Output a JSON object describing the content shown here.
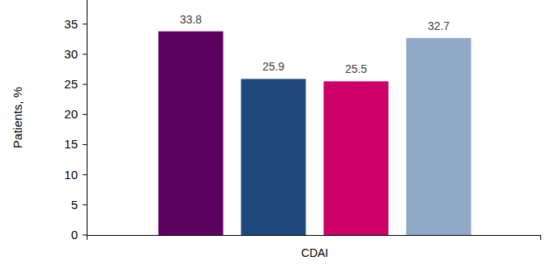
{
  "chart_data": {
    "type": "bar",
    "y_label": "Patients, %",
    "categories": [
      "CDAI"
    ],
    "series": [
      {
        "color": "#5c0060",
        "values": [
          33.8
        ]
      },
      {
        "color": "#1f497d",
        "values": [
          25.9
        ]
      },
      {
        "color": "#cc0066",
        "values": [
          25.5
        ]
      },
      {
        "color": "#8fa8c4",
        "values": [
          32.7
        ]
      }
    ],
    "ylim": [
      0,
      39
    ],
    "yticks": [
      0,
      5,
      10,
      15,
      20,
      25,
      30,
      35
    ],
    "grid": false,
    "data_labels": true
  }
}
